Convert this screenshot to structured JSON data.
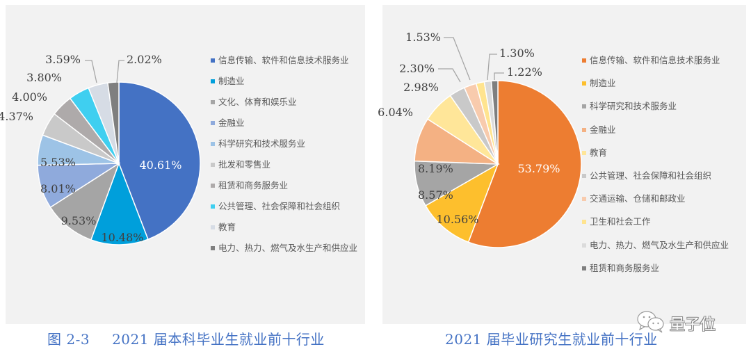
{
  "chart_data": [
    {
      "type": "pie",
      "title": "2021 届本科毕业生就业前十行业",
      "figure_number": "图 2-3",
      "start_angle": "12 o'clock, clockwise",
      "legend_position": "right",
      "categories": [
        "信息传输、软件和信息技术服务业",
        "制造业",
        "文化、体育和娱乐业",
        "金融业",
        "科学研究和技术服务业",
        "批发和零售业",
        "租赁和商务服务业",
        "公共管理、社会保障和社会组织",
        "教育",
        "电力、热力、燃气及水生产和供应业"
      ],
      "values": [
        40.61,
        10.48,
        9.53,
        8.01,
        5.53,
        4.37,
        4.0,
        3.8,
        3.59,
        2.02
      ],
      "labels": [
        "40.61%",
        "10.48%",
        "9.53%",
        "8.01%",
        "5.53%",
        "4.37%",
        "4.00%",
        "3.80%",
        "3.59%",
        "2.02%"
      ],
      "colors": [
        "#4472c4",
        "#009fdb",
        "#a5a5a5",
        "#8faadc",
        "#9dc3e6",
        "#c9c9c9",
        "#aeaaaa",
        "#3fcff0",
        "#d6dce5",
        "#7f7f7f"
      ]
    },
    {
      "type": "pie",
      "title": "2021 届毕业研究生就业前十行业",
      "start_angle": "12 o'clock, clockwise",
      "legend_position": "right",
      "categories": [
        "信息传输、软件和信息技术服务业",
        "制造业",
        "科学研究和技术服务业",
        "金融业",
        "教育",
        "公共管理、社会保障和社会组织",
        "交通运输、仓储和邮政业",
        "卫生和社会工作",
        "电力、热力、燃气及水生产和供应业",
        "租赁和商务服务业"
      ],
      "values": [
        53.79,
        10.56,
        8.57,
        8.19,
        6.04,
        2.98,
        2.3,
        1.53,
        1.3,
        1.22
      ],
      "labels": [
        "53.79%",
        "10.56%",
        "8.57%",
        "8.19%",
        "6.04%",
        "2.98%",
        "2.30%",
        "1.53%",
        "1.30%",
        "1.22%"
      ],
      "colors": [
        "#ed7d31",
        "#fdbf2d",
        "#a5a5a5",
        "#f4b183",
        "#ffe699",
        "#c9c9c9",
        "#f8cbad",
        "#ffe48f",
        "#dbdbdb",
        "#7f7f7f"
      ]
    }
  ],
  "captions": {
    "left_fig_no": "图 2-3",
    "left_title": "2021 届本科毕业生就业前十行业",
    "right_title": "2021 届毕业研究生就业前十行业"
  },
  "watermark": {
    "icon": "wechat-icon",
    "text": "量子位"
  }
}
